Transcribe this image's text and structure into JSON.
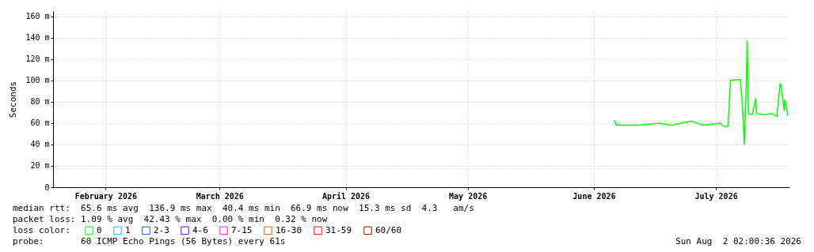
{
  "chart_data": {
    "type": "line",
    "ylabel": "Seconds",
    "legend_title": "loss color:",
    "legend": "bottom left",
    "grid": true,
    "marker": "none",
    "line_style": "solid",
    "xlim": [
      "2026-02-02T02:00",
      "2026-08-02T02:00"
    ],
    "xticks": [
      {
        "value": "2026-02-15",
        "label": "February 2026"
      },
      {
        "value": "2026-03-15",
        "label": "March 2026"
      },
      {
        "value": "2026-04-15",
        "label": "April 2026"
      },
      {
        "value": "2026-05-15",
        "label": "May 2026"
      },
      {
        "value": "2026-06-15",
        "label": "June 2026"
      },
      {
        "value": "2026-07-15",
        "label": "July 2026"
      }
    ],
    "ylim": [
      0,
      165
    ],
    "yticks": [
      0,
      {
        "value": 20,
        "label": "20 m"
      },
      {
        "value": 40,
        "label": "40 m"
      },
      {
        "value": 60,
        "label": "60 m"
      },
      {
        "value": 80,
        "label": "80 m"
      },
      {
        "value": 100,
        "label": "100 m"
      },
      {
        "value": 120,
        "label": "120 m"
      },
      {
        "value": 140,
        "label": "140 m"
      },
      {
        "value": 160,
        "label": "160 m"
      }
    ],
    "x": [
      "2026-06-20",
      "2026-06-20T14:00",
      "2026-06-22",
      "2026-06-26",
      "2026-07-01",
      "2026-07-04",
      "2026-07-09",
      "2026-07-12",
      "2026-07-16",
      "2026-07-17",
      "2026-07-18",
      "2026-07-18T14:00",
      "2026-07-21",
      "2026-07-21T12:00",
      "2026-07-22",
      "2026-07-22T12:00",
      "2026-07-22T17:00",
      "2026-07-23",
      "2026-07-23T10:00",
      "2026-07-24",
      "2026-07-24T19:00",
      "2026-07-25",
      "2026-07-27",
      "2026-07-29",
      "2026-07-30",
      "2026-07-30T19:00",
      "2026-07-31",
      "2026-07-31T19:00",
      "2026-08-01",
      "2026-08-01T17:00"
    ],
    "series": [
      {
        "name": "0",
        "color": "#00ff00",
        "values": [
          63,
          58,
          58,
          58,
          60,
          58,
          62,
          58,
          60,
          57,
          57,
          100,
          101,
          79,
          40,
          100,
          137,
          69,
          68,
          69,
          83,
          69,
          68,
          69,
          66,
          97,
          96,
          72,
          82,
          67
        ]
      },
      {
        "name": "1",
        "color": "#00b8ff",
        "values": [
          null,
          null,
          null,
          null,
          null,
          null,
          null,
          null,
          null,
          null,
          null,
          null,
          null,
          null,
          null,
          null,
          null,
          null,
          null,
          null,
          null,
          null,
          null,
          null,
          null,
          null,
          null,
          null,
          null,
          null
        ]
      },
      {
        "name": "2-3",
        "color": "#0059ff",
        "values": [
          null,
          null,
          null,
          null,
          null,
          null,
          null,
          null,
          null,
          null,
          null,
          null,
          null,
          null,
          null,
          null,
          null,
          null,
          null,
          null,
          null,
          null,
          null,
          null,
          null,
          null,
          null,
          null,
          null,
          null
        ]
      },
      {
        "name": "4-6",
        "color": "#5e00ff",
        "values": [
          null,
          null,
          null,
          null,
          null,
          null,
          null,
          null,
          null,
          null,
          null,
          null,
          null,
          null,
          null,
          null,
          null,
          null,
          null,
          null,
          null,
          null,
          null,
          null,
          null,
          null,
          null,
          null,
          null,
          null
        ]
      },
      {
        "name": "7-15",
        "color": "#ff00ff",
        "values": [
          null,
          null,
          null,
          null,
          null,
          null,
          null,
          null,
          null,
          null,
          null,
          null,
          null,
          null,
          null,
          null,
          null,
          null,
          null,
          null,
          null,
          null,
          null,
          null,
          null,
          null,
          null,
          null,
          null,
          null
        ]
      },
      {
        "name": "16-30",
        "color": "#ff5500",
        "values": [
          null,
          null,
          null,
          null,
          null,
          null,
          null,
          null,
          null,
          null,
          null,
          null,
          null,
          null,
          null,
          null,
          null,
          null,
          null,
          null,
          null,
          null,
          null,
          null,
          null,
          null,
          null,
          null,
          null,
          null
        ]
      },
      {
        "name": "31-59",
        "color": "#ff0000",
        "values": [
          null,
          null,
          null,
          null,
          null,
          null,
          null,
          null,
          null,
          null,
          null,
          null,
          null,
          null,
          null,
          null,
          null,
          null,
          null,
          null,
          null,
          null,
          null,
          null,
          null,
          null,
          null,
          null,
          null,
          null
        ]
      },
      {
        "name": "60/60",
        "color": "#a10000",
        "values": [
          null,
          null,
          null,
          null,
          null,
          null,
          null,
          null,
          null,
          null,
          null,
          null,
          null,
          null,
          null,
          null,
          null,
          null,
          null,
          null,
          null,
          null,
          null,
          null,
          null,
          null,
          null,
          null,
          null,
          null
        ]
      }
    ],
    "annotations": [
      "median rtt:  65.6 ms avg  136.9 ms max  40.4 ms min  66.9 ms now  15.3 ms sd  4.3   am/s",
      "packet loss: 1.09 % avg  42.43 % max  0.00 % min  0.32 % now",
      "probe:       60 ICMP Echo Pings (56 Bytes) every 61s",
      "Sun Aug  2 02:00:36 2026"
    ]
  }
}
